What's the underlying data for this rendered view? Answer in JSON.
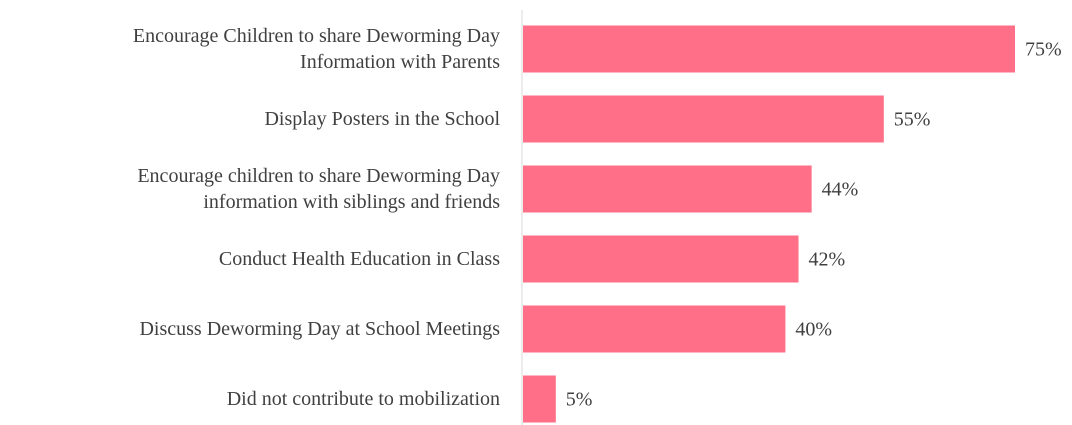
{
  "chart_data": {
    "type": "barh",
    "categories": [
      "Encourage Children to share Deworming Day\nInformation with Parents",
      "Display Posters in the School",
      "Encourage children to share Deworming Day\ninformation with siblings and friends",
      "Conduct Health Education in Class",
      "Discuss Deworming Day at School Meetings",
      "Did not contribute to mobilization"
    ],
    "values": [
      75,
      55,
      44,
      42,
      40,
      5
    ],
    "value_labels": [
      "75%",
      "55%",
      "44%",
      "42%",
      "40%",
      "5%"
    ],
    "color": "#ff6f87",
    "xlim": [
      0,
      100
    ]
  }
}
